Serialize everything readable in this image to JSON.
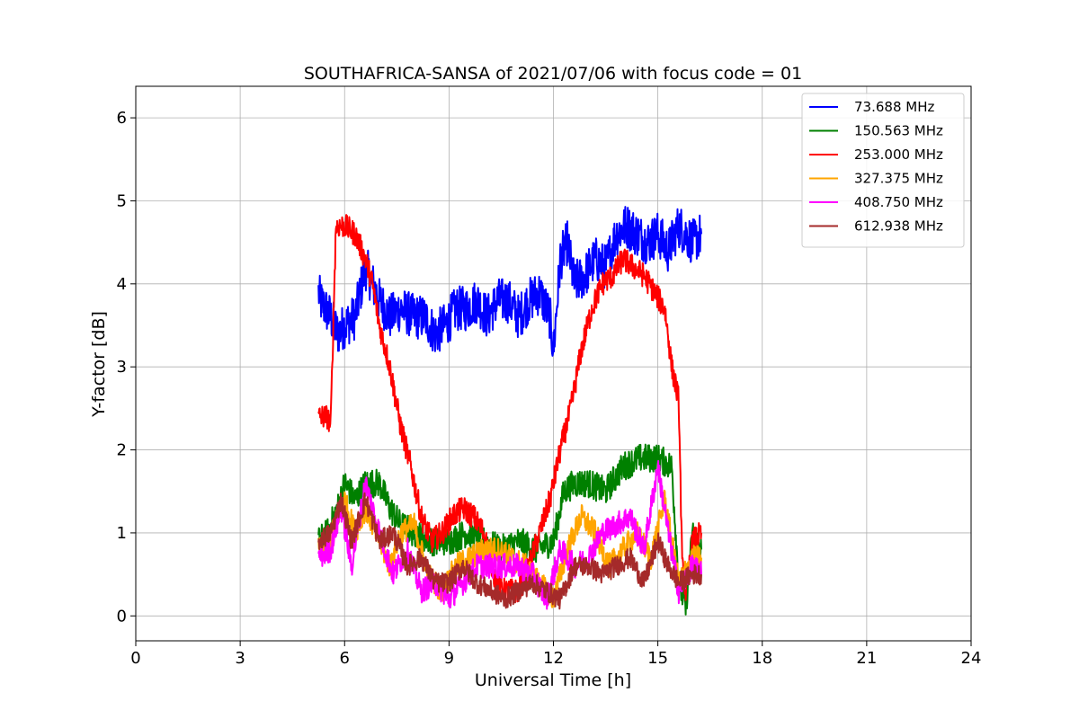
{
  "chart_data": {
    "type": "line",
    "title": "SOUTHAFRICA-SANSA of 2021/07/06 with focus code = 01",
    "xlabel": "Universal Time [h]",
    "ylabel": "Y-factor [dB]",
    "xlim": [
      0,
      24
    ],
    "ylim": [
      -0.3,
      6.38
    ],
    "xticks": [
      0,
      3,
      6,
      9,
      12,
      15,
      18,
      21,
      24
    ],
    "yticks": [
      0,
      1,
      2,
      3,
      4,
      5,
      6
    ],
    "grid": true,
    "legend_position": "top-right",
    "series": [
      {
        "name": " 73.688 MHz",
        "color": "#0000ff",
        "noise": 0.55,
        "x": [
          5.25,
          5.3,
          5.6,
          5.8,
          6.0,
          6.3,
          6.6,
          7.0,
          7.3,
          7.6,
          8.0,
          8.3,
          8.6,
          8.9,
          9.2,
          9.5,
          9.8,
          10.1,
          10.4,
          10.7,
          11.0,
          11.3,
          11.6,
          11.9,
          12.0,
          12.2,
          12.4,
          12.6,
          12.9,
          13.2,
          13.5,
          13.8,
          14.1,
          14.4,
          14.7,
          15.0,
          15.3,
          15.6,
          15.8,
          16.0,
          16.25
        ],
        "y": [
          3.9,
          3.8,
          3.6,
          3.4,
          3.5,
          3.6,
          4.2,
          3.8,
          3.6,
          3.7,
          3.6,
          3.6,
          3.4,
          3.5,
          3.7,
          3.7,
          3.8,
          3.6,
          3.8,
          3.8,
          3.6,
          3.8,
          3.9,
          3.6,
          3.2,
          4.3,
          4.5,
          4.0,
          4.1,
          4.3,
          4.2,
          4.6,
          4.7,
          4.6,
          4.5,
          4.6,
          4.4,
          4.7,
          4.6,
          4.5,
          4.6
        ]
      },
      {
        "name": "150.563 MHz",
        "color": "#008000",
        "noise": 0.35,
        "x": [
          5.25,
          5.5,
          5.8,
          6.0,
          6.3,
          6.6,
          7.0,
          7.3,
          7.6,
          8.0,
          8.5,
          9.0,
          9.5,
          10.0,
          10.5,
          11.0,
          11.5,
          12.0,
          12.3,
          12.6,
          13.0,
          13.5,
          14.0,
          14.5,
          15.0,
          15.4,
          15.6,
          15.8,
          16.0,
          16.25
        ],
        "y": [
          0.9,
          1.0,
          1.3,
          1.6,
          1.4,
          1.6,
          1.6,
          1.3,
          1.1,
          1.0,
          0.9,
          0.9,
          1.0,
          0.9,
          0.8,
          0.9,
          0.8,
          0.9,
          1.5,
          1.6,
          1.6,
          1.5,
          1.8,
          1.9,
          1.9,
          1.8,
          0.4,
          0.1,
          1.0,
          0.8
        ]
      },
      {
        "name": "253.000 MHz",
        "color": "#ff0000",
        "noise": 0.3,
        "x": [
          5.25,
          5.5,
          5.6,
          5.75,
          6.0,
          6.3,
          6.6,
          6.8,
          7.0,
          7.3,
          7.6,
          7.9,
          8.2,
          8.5,
          8.8,
          9.1,
          9.4,
          9.7,
          10.0,
          10.3,
          10.6,
          11.0,
          11.3,
          11.6,
          11.9,
          12.2,
          12.5,
          12.8,
          13.1,
          13.4,
          13.7,
          14.0,
          14.3,
          14.6,
          14.9,
          15.2,
          15.4,
          15.6,
          15.7,
          15.8,
          16.0,
          16.25
        ],
        "y": [
          2.4,
          2.4,
          2.3,
          4.7,
          4.7,
          4.6,
          4.3,
          4.0,
          3.5,
          3.0,
          2.3,
          1.8,
          1.2,
          0.9,
          1.0,
          1.2,
          1.3,
          1.2,
          1.0,
          0.5,
          0.3,
          0.3,
          0.6,
          1.0,
          1.4,
          2.0,
          2.5,
          3.2,
          3.7,
          4.0,
          4.1,
          4.3,
          4.2,
          4.1,
          3.9,
          3.7,
          3.0,
          2.6,
          0.6,
          0.3,
          0.9,
          1.0
        ]
      },
      {
        "name": "327.375 MHz",
        "color": "#ffa500",
        "noise": 0.3,
        "x": [
          5.25,
          5.5,
          5.8,
          6.0,
          6.3,
          6.6,
          7.0,
          7.3,
          7.6,
          8.0,
          8.4,
          8.8,
          9.2,
          9.6,
          10.0,
          10.4,
          10.8,
          11.2,
          11.6,
          12.0,
          12.4,
          12.8,
          13.2,
          13.6,
          14.0,
          14.4,
          14.8,
          15.2,
          15.6,
          16.0,
          16.25
        ],
        "y": [
          0.8,
          0.8,
          1.2,
          1.4,
          1.0,
          1.3,
          0.9,
          0.6,
          1.0,
          1.1,
          0.5,
          0.3,
          0.6,
          0.7,
          0.8,
          0.8,
          0.7,
          0.6,
          0.4,
          0.2,
          0.8,
          1.2,
          1.0,
          0.6,
          0.8,
          1.0,
          0.7,
          1.4,
          0.4,
          0.7,
          0.7
        ]
      },
      {
        "name": "408.750 MHz",
        "color": "#ff00ff",
        "noise": 0.3,
        "x": [
          5.25,
          5.6,
          5.9,
          6.2,
          6.6,
          7.0,
          7.4,
          7.8,
          8.2,
          8.6,
          9.0,
          9.4,
          9.8,
          10.2,
          10.6,
          11.0,
          11.4,
          11.8,
          12.2,
          12.6,
          13.0,
          13.4,
          13.8,
          14.2,
          14.6,
          15.0,
          15.3,
          15.6,
          16.0,
          16.25
        ],
        "y": [
          0.7,
          0.8,
          1.3,
          0.6,
          1.6,
          1.0,
          0.5,
          0.8,
          0.3,
          0.4,
          0.2,
          0.4,
          0.6,
          0.6,
          0.6,
          0.6,
          0.5,
          0.2,
          0.8,
          0.6,
          0.7,
          1.0,
          1.1,
          1.2,
          0.8,
          1.8,
          1.0,
          0.3,
          0.6,
          0.5
        ]
      },
      {
        "name": "612.938 MHz",
        "color": "#a52a2a",
        "noise": 0.25,
        "x": [
          5.25,
          5.6,
          5.9,
          6.2,
          6.6,
          7.0,
          7.4,
          7.8,
          8.2,
          8.6,
          9.0,
          9.4,
          9.8,
          10.2,
          10.6,
          11.0,
          11.4,
          11.8,
          12.2,
          12.6,
          13.0,
          13.4,
          13.8,
          14.2,
          14.6,
          15.0,
          15.3,
          15.6,
          16.0,
          16.25
        ],
        "y": [
          0.9,
          1.0,
          1.4,
          0.9,
          1.4,
          0.9,
          1.0,
          0.6,
          0.7,
          0.4,
          0.4,
          0.6,
          0.4,
          0.3,
          0.2,
          0.3,
          0.4,
          0.3,
          0.2,
          0.6,
          0.6,
          0.5,
          0.6,
          0.7,
          0.4,
          0.9,
          0.6,
          0.4,
          0.5,
          0.5
        ]
      }
    ]
  }
}
